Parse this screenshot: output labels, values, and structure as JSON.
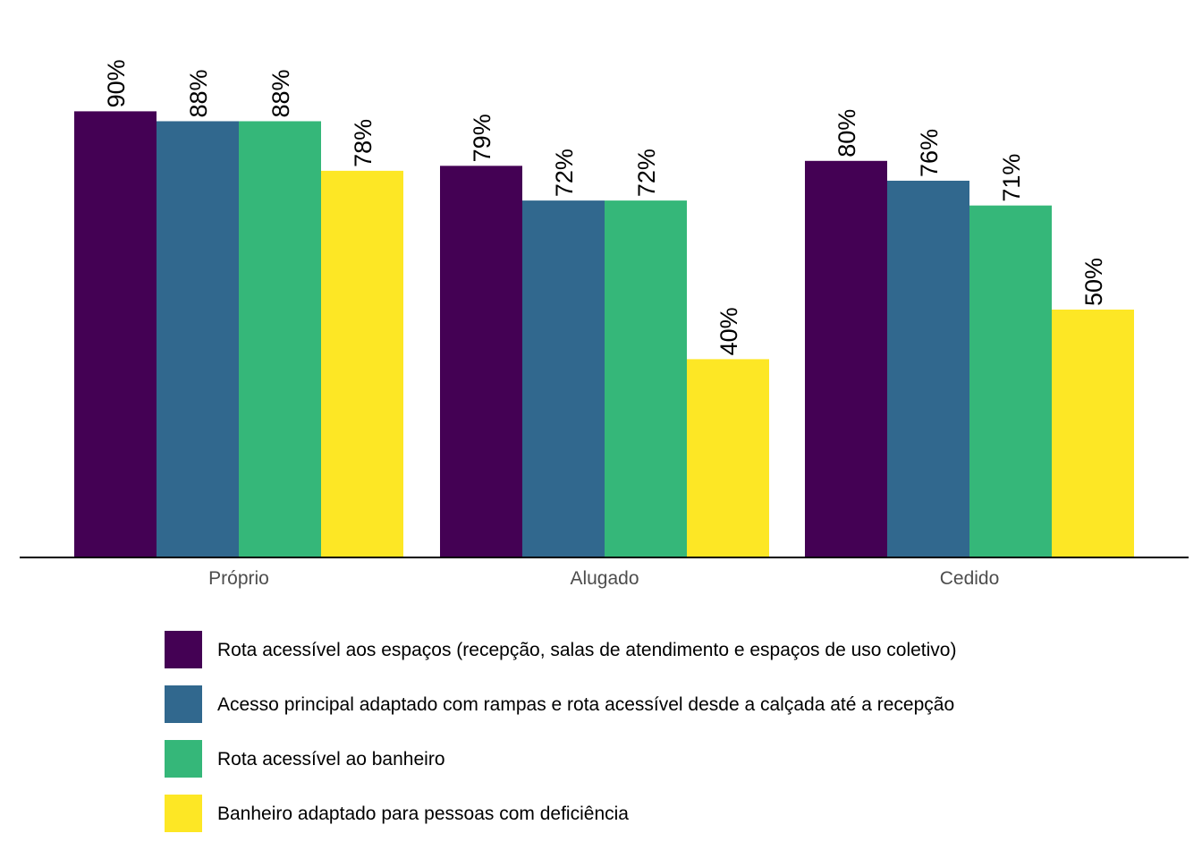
{
  "chart_data": {
    "type": "bar",
    "categories": [
      "Próprio",
      "Alugado",
      "Cedido"
    ],
    "series": [
      {
        "name": "Rota acessível aos espaços (recepção, salas de atendimento e espaços de uso coletivo)",
        "color": "#440154",
        "values": [
          90,
          79,
          80
        ],
        "labels": [
          "90%",
          "79%",
          "80%"
        ]
      },
      {
        "name": "Acesso principal adaptado com rampas e rota acessível desde a calçada até a recepção",
        "color": "#31688E",
        "values": [
          88,
          72,
          76
        ],
        "labels": [
          "88%",
          "72%",
          "76%"
        ]
      },
      {
        "name": "Rota acessível ao banheiro",
        "color": "#35B779",
        "values": [
          88,
          72,
          71
        ],
        "labels": [
          "88%",
          "72%",
          "71%"
        ]
      },
      {
        "name": "Banheiro adaptado para pessoas com deficiência",
        "color": "#FDE725",
        "values": [
          78,
          40,
          50
        ],
        "labels": [
          "78%",
          "40%",
          "50%"
        ]
      }
    ],
    "title": "",
    "xlabel": "",
    "ylabel": "",
    "ylim": [
      0,
      100
    ],
    "grid": false,
    "legend_position": "bottom"
  }
}
